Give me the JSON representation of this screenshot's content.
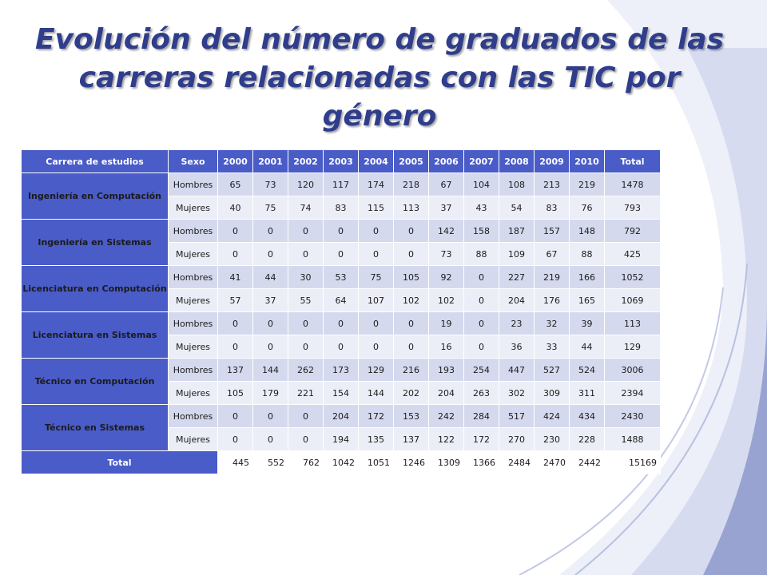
{
  "title": {
    "line1": "Evolución del número de graduados de las",
    "line2": "carreras relacionadas con las TIC por género"
  },
  "colors": {
    "title": "#2f3d8c",
    "header": "#4a5cc8",
    "band_dark": "#d5d9ee",
    "band_light": "#eceef7"
  },
  "table": {
    "headers": [
      "Carrera de estudios",
      "Sexo",
      "2000",
      "2001",
      "2002",
      "2003",
      "2004",
      "2005",
      "2006",
      "2007",
      "2008",
      "2009",
      "2010",
      "Total"
    ],
    "groups": [
      {
        "carrera": "Ingeniería en Computación",
        "rows": [
          {
            "sexo": "Hombres",
            "values": [
              "65",
              "73",
              "120",
              "117",
              "174",
              "218",
              "67",
              "104",
              "108",
              "213",
              "219",
              "1478"
            ]
          },
          {
            "sexo": "Mujeres",
            "values": [
              "40",
              "75",
              "74",
              "83",
              "115",
              "113",
              "37",
              "43",
              "54",
              "83",
              "76",
              "793"
            ]
          }
        ]
      },
      {
        "carrera": "Ingeniería en Sistemas",
        "rows": [
          {
            "sexo": "Hombres",
            "values": [
              "0",
              "0",
              "0",
              "0",
              "0",
              "0",
              "142",
              "158",
              "187",
              "157",
              "148",
              "792"
            ]
          },
          {
            "sexo": "Mujeres",
            "values": [
              "0",
              "0",
              "0",
              "0",
              "0",
              "0",
              "73",
              "88",
              "109",
              "67",
              "88",
              "425"
            ]
          }
        ]
      },
      {
        "carrera": "Licenciatura en Computación",
        "rows": [
          {
            "sexo": "Hombres",
            "values": [
              "41",
              "44",
              "30",
              "53",
              "75",
              "105",
              "92",
              "0",
              "227",
              "219",
              "166",
              "1052"
            ]
          },
          {
            "sexo": "Mujeres",
            "values": [
              "57",
              "37",
              "55",
              "64",
              "107",
              "102",
              "102",
              "0",
              "204",
              "176",
              "165",
              "1069"
            ]
          }
        ]
      },
      {
        "carrera": "Licenciatura en Sistemas",
        "rows": [
          {
            "sexo": "Hombres",
            "values": [
              "0",
              "0",
              "0",
              "0",
              "0",
              "0",
              "19",
              "0",
              "23",
              "32",
              "39",
              "113"
            ]
          },
          {
            "sexo": "Mujeres",
            "values": [
              "0",
              "0",
              "0",
              "0",
              "0",
              "0",
              "16",
              "0",
              "36",
              "33",
              "44",
              "129"
            ]
          }
        ]
      },
      {
        "carrera": "Técnico en Computación",
        "rows": [
          {
            "sexo": "Hombres",
            "values": [
              "137",
              "144",
              "262",
              "173",
              "129",
              "216",
              "193",
              "254",
              "447",
              "527",
              "524",
              "3006"
            ]
          },
          {
            "sexo": "Mujeres",
            "values": [
              "105",
              "179",
              "221",
              "154",
              "144",
              "202",
              "204",
              "263",
              "302",
              "309",
              "311",
              "2394"
            ]
          }
        ]
      },
      {
        "carrera": "Técnico en Sistemas",
        "rows": [
          {
            "sexo": "Hombres",
            "values": [
              "0",
              "0",
              "0",
              "204",
              "172",
              "153",
              "242",
              "284",
              "517",
              "424",
              "434",
              "2430"
            ]
          },
          {
            "sexo": "Mujeres",
            "values": [
              "0",
              "0",
              "0",
              "194",
              "135",
              "137",
              "122",
              "172",
              "270",
              "230",
              "228",
              "1488"
            ]
          }
        ]
      }
    ],
    "total_label": "Total",
    "totals": [
      "445",
      "552",
      "762",
      "1042",
      "1051",
      "1246",
      "1309",
      "1366",
      "2484",
      "2470",
      "2442",
      "15169"
    ]
  }
}
